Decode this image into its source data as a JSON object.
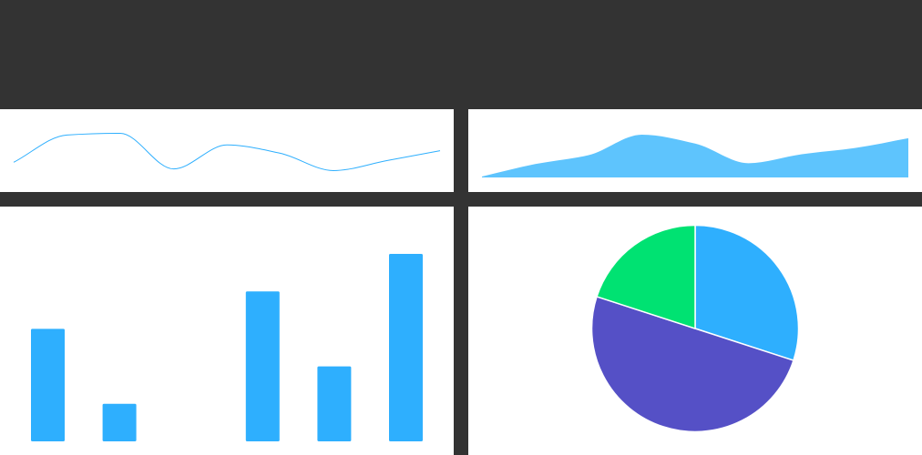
{
  "colors": {
    "background": "#333333",
    "panel": "#ffffff",
    "primary": "#2eaffe",
    "area_fill": "#5ec4fd",
    "pie": [
      "#2eaffe",
      "#5550c6",
      "#00e272"
    ]
  },
  "chart_data": [
    {
      "type": "line",
      "smooth": true,
      "x": [
        0,
        1,
        2,
        3,
        4,
        5,
        6,
        7,
        8
      ],
      "series": [
        {
          "values": [
            10,
            43,
            45,
            2,
            31,
            21,
            0,
            12,
            24
          ]
        }
      ],
      "ylim": [
        -5,
        50
      ],
      "grid": false,
      "legend": "none"
    },
    {
      "type": "area",
      "smooth": true,
      "x": [
        0,
        1,
        2,
        3,
        4,
        5,
        6,
        7,
        8
      ],
      "series": [
        {
          "values": [
            1,
            15,
            25,
            48,
            38,
            16,
            26,
            33,
            44
          ]
        }
      ],
      "ylim": [
        0,
        50
      ],
      "grid": false,
      "legend": "none"
    },
    {
      "type": "bar",
      "categories": [
        "",
        "",
        "",
        "",
        "",
        ""
      ],
      "values": [
        60,
        20,
        0,
        80,
        40,
        100
      ],
      "ylim": [
        0,
        100
      ],
      "grid": false,
      "legend": "none"
    },
    {
      "type": "pie",
      "values": [
        30,
        50,
        20
      ],
      "start_angle_deg": 0,
      "direction": "clockwise",
      "legend": "none"
    }
  ]
}
